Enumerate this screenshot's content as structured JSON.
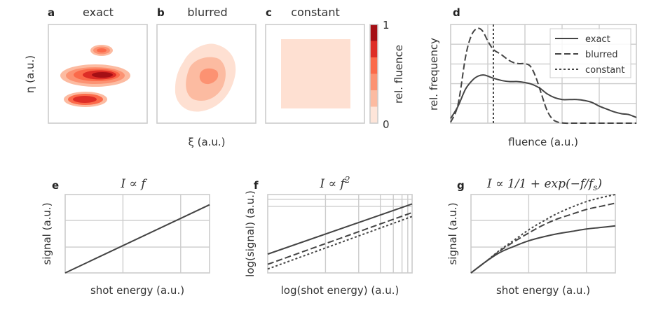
{
  "chart_data": [
    {
      "panel": "a",
      "type": "heatmap",
      "title": "exact",
      "colormap": [
        "#fee5d9",
        "#fcbba1",
        "#fc9272",
        "#fb6a4a",
        "#de2d26",
        "#a50f15"
      ],
      "blobs": [
        {
          "name": "upper-small",
          "levels": 3
        },
        {
          "name": "middle-large",
          "levels": 5
        },
        {
          "name": "lower",
          "levels": 3
        }
      ]
    },
    {
      "panel": "b",
      "type": "heatmap",
      "title": "blurred",
      "blobs": [
        {
          "name": "smoothed",
          "levels": 3
        }
      ]
    },
    {
      "panel": "c",
      "type": "heatmap",
      "title": "constant",
      "blobs": [
        {
          "name": "uniform-square",
          "levels": 1
        }
      ]
    },
    {
      "panel": "colorbar",
      "label": "rel. fluence",
      "ticks": [
        "0",
        "1"
      ],
      "levels": [
        "#fee5d9",
        "#fcbba1",
        "#fc9272",
        "#fb6a4a",
        "#de2d26",
        "#a50f15"
      ]
    },
    {
      "panel": "d",
      "type": "line",
      "xlabel": "fluence (a.u.)",
      "ylabel": "rel. frequency",
      "xlim": [
        0,
        1
      ],
      "ylim": [
        0,
        1
      ],
      "legend_position": "top-right",
      "series": [
        {
          "name": "exact",
          "style": "solid",
          "x": [
            0,
            0.04,
            0.08,
            0.12,
            0.15,
            0.18,
            0.21,
            0.24,
            0.28,
            0.32,
            0.36,
            0.4,
            0.44,
            0.48,
            0.52,
            0.56,
            0.6,
            0.64,
            0.68,
            0.72,
            0.76,
            0.8,
            0.84,
            0.88,
            0.92,
            0.96,
            1.0
          ],
          "y": [
            0.05,
            0.18,
            0.36,
            0.46,
            0.5,
            0.51,
            0.49,
            0.47,
            0.45,
            0.44,
            0.44,
            0.43,
            0.41,
            0.37,
            0.31,
            0.27,
            0.25,
            0.25,
            0.25,
            0.24,
            0.22,
            0.18,
            0.15,
            0.12,
            0.1,
            0.09,
            0.06
          ]
        },
        {
          "name": "blurred",
          "style": "dashed",
          "x": [
            0,
            0.04,
            0.08,
            0.11,
            0.14,
            0.17,
            0.2,
            0.23,
            0.27,
            0.31,
            0.34,
            0.37,
            0.4,
            0.43,
            0.46,
            0.49,
            0.52,
            0.55,
            0.58,
            0.62,
            0.66,
            0.7,
            0.8,
            0.9,
            1.0
          ],
          "y": [
            0.01,
            0.2,
            0.7,
            0.92,
            1.0,
            0.98,
            0.87,
            0.78,
            0.73,
            0.67,
            0.64,
            0.63,
            0.63,
            0.6,
            0.48,
            0.3,
            0.13,
            0.04,
            0.01,
            0.0,
            0.0,
            0.0,
            0.0,
            0.0,
            0.0
          ]
        },
        {
          "name": "constant",
          "style": "dotted",
          "vline_x": 0.23
        }
      ]
    },
    {
      "panel": "e",
      "type": "line",
      "title": "I ∝ f",
      "xlabel": "shot energy (a.u.)",
      "ylabel": "signal (a.u.)",
      "xlim": [
        0,
        1
      ],
      "ylim": [
        0,
        1
      ],
      "series": [
        {
          "name": "linear",
          "style": "solid",
          "x": [
            0,
            1
          ],
          "y": [
            0,
            0.87
          ]
        }
      ]
    },
    {
      "panel": "f",
      "type": "line",
      "title": "I ∝ f²",
      "scale": "log-log",
      "xlabel": "log(shot energy) (a.u.)",
      "ylabel": "log(signal) (a.u.)",
      "xlim": [
        0,
        1
      ],
      "ylim": [
        0,
        1
      ],
      "series": [
        {
          "name": "exact",
          "style": "solid",
          "x": [
            0,
            1
          ],
          "y": [
            0.24,
            0.88
          ]
        },
        {
          "name": "blurred",
          "style": "dashed",
          "x": [
            0,
            1
          ],
          "y": [
            0.11,
            0.77
          ]
        },
        {
          "name": "constant",
          "style": "dotted",
          "x": [
            0,
            1
          ],
          "y": [
            0.05,
            0.72
          ]
        }
      ]
    },
    {
      "panel": "g",
      "type": "line",
      "title": "I ∝ 1/1 + exp(−f/fₛ)",
      "xlabel": "shot energy (a.u.)",
      "ylabel": "signal (a.u.)",
      "xlim": [
        0,
        1
      ],
      "ylim": [
        0,
        1
      ],
      "series": [
        {
          "name": "exact",
          "style": "solid",
          "x": [
            0,
            0.1,
            0.2,
            0.3,
            0.4,
            0.5,
            0.6,
            0.7,
            0.8,
            0.9,
            1.0
          ],
          "y": [
            0,
            0.14,
            0.26,
            0.34,
            0.41,
            0.46,
            0.5,
            0.53,
            0.56,
            0.58,
            0.6
          ]
        },
        {
          "name": "blurred",
          "style": "dashed",
          "x": [
            0,
            0.1,
            0.2,
            0.3,
            0.4,
            0.5,
            0.6,
            0.7,
            0.8,
            0.9,
            1.0
          ],
          "y": [
            0,
            0.14,
            0.28,
            0.4,
            0.51,
            0.61,
            0.69,
            0.75,
            0.81,
            0.85,
            0.89
          ]
        },
        {
          "name": "constant",
          "style": "dotted",
          "x": [
            0,
            0.1,
            0.2,
            0.3,
            0.4,
            0.5,
            0.6,
            0.7,
            0.8,
            0.9,
            1.0
          ],
          "y": [
            0,
            0.14,
            0.29,
            0.42,
            0.55,
            0.66,
            0.76,
            0.84,
            0.91,
            0.96,
            1.0
          ]
        }
      ]
    }
  ],
  "labels": {
    "a": "a",
    "b": "b",
    "c": "c",
    "d": "d",
    "e": "e",
    "f": "f",
    "g": "g",
    "title_a": "exact",
    "title_b": "blurred",
    "title_c": "constant",
    "eta": "η (a.u.)",
    "xi": "ξ (a.u.)",
    "cb_label": "rel. fluence",
    "cb_top": "1",
    "cb_bottom": "0",
    "d_x": "fluence (a.u.)",
    "d_y": "rel. frequency",
    "legend_exact": "exact",
    "legend_blurred": "blurred",
    "legend_constant": "constant",
    "e_x": "shot energy (a.u.)",
    "e_y": "signal (a.u.)",
    "f_x": "log(shot energy) (a.u.)",
    "f_y": "log(signal) (a.u.)",
    "g_x": "shot energy (a.u.)",
    "g_y": "signal (a.u.)"
  }
}
